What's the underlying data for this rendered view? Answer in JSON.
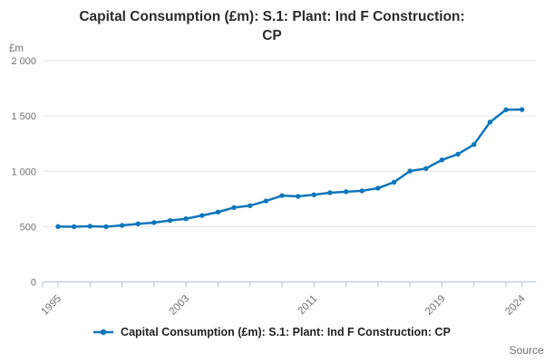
{
  "title": "Capital Consumption (£m): S.1: Plant: Ind F Construction:\nCP",
  "legend": {
    "label": "Capital Consumption (£m): S.1: Plant: Ind F Construction: CP"
  },
  "source": {
    "label": "Source:"
  },
  "y_axis": {
    "unit": "£m",
    "tick_labels": [
      "0",
      "500",
      "1 000",
      "1 500",
      "2 000"
    ]
  },
  "x_axis": {
    "labeled_years": [
      "1995",
      "2003",
      "2011",
      "2019",
      "2024"
    ]
  },
  "colors": {
    "line": "#0e76bc",
    "grid": "#e3e3e3",
    "axis": "#b6c2d6",
    "axis_text": "#707070",
    "title_text": "#2b2b2b"
  },
  "chart_data": {
    "type": "line",
    "title": "Capital Consumption (£m): S.1: Plant: Ind F Construction: CP",
    "xlabel": "",
    "ylabel": "£m",
    "x": [
      1995,
      1996,
      1997,
      1998,
      1999,
      2000,
      2001,
      2002,
      2003,
      2004,
      2005,
      2006,
      2007,
      2008,
      2009,
      2010,
      2011,
      2012,
      2013,
      2014,
      2015,
      2016,
      2017,
      2018,
      2019,
      2020,
      2021,
      2022,
      2023,
      2024
    ],
    "series": [
      {
        "name": "Capital Consumption (£m): S.1: Plant: Ind F Construction: CP",
        "values": [
          500,
          499,
          503,
          499,
          511,
          525,
          536,
          555,
          571,
          600,
          631,
          672,
          689,
          732,
          780,
          773,
          788,
          806,
          815,
          823,
          847,
          901,
          1002,
          1025,
          1103,
          1155,
          1242,
          1444,
          1556,
          1558
        ]
      }
    ],
    "ylim": [
      0,
      2000
    ],
    "y_tick_values": [
      0,
      500,
      1000,
      1500,
      2000
    ],
    "y_tick_labels": [
      "0",
      "500",
      "1 000",
      "1 500",
      "2 000"
    ],
    "x_tick_interval": 2,
    "x_labeled_years": [
      1995,
      2003,
      2011,
      2019,
      2024
    ],
    "grid": true,
    "markers": true,
    "legend_position": "bottom"
  }
}
